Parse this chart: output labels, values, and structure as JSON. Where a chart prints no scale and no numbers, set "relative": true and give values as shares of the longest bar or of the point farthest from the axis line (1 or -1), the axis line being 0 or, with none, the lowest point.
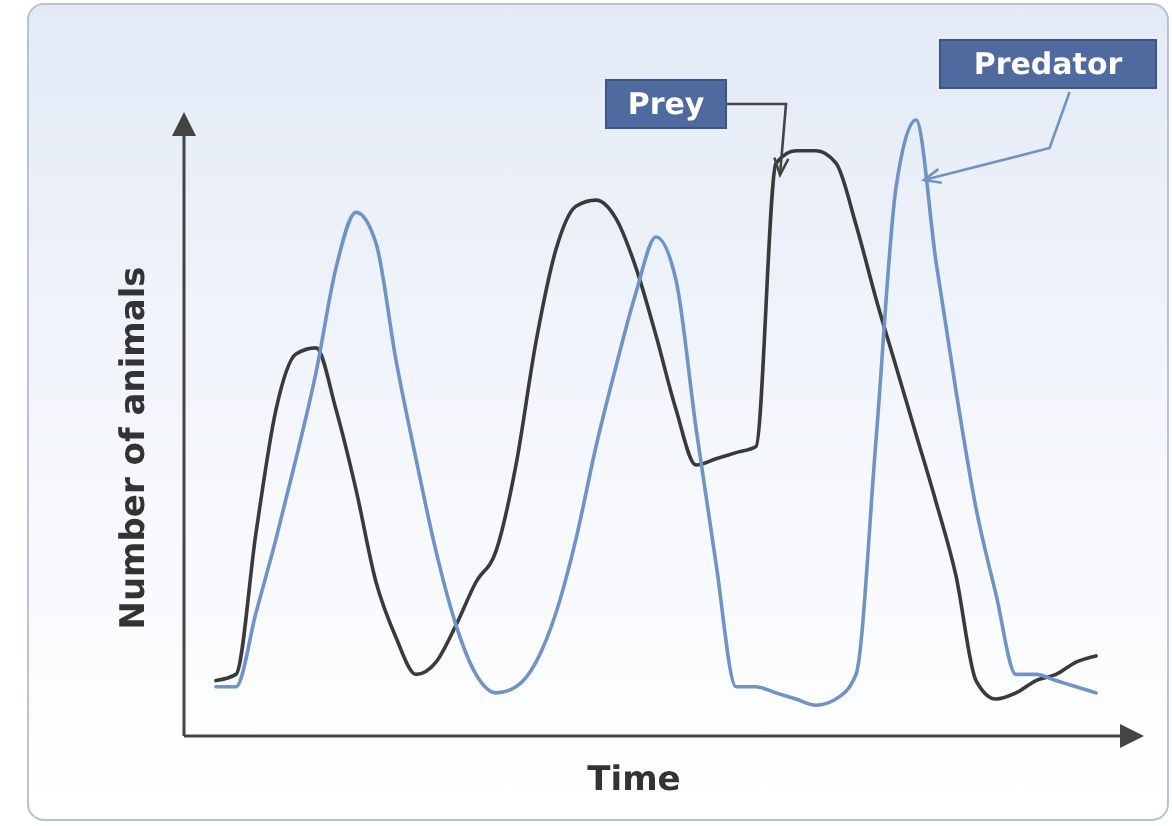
{
  "chart_data": {
    "type": "line",
    "relative": true,
    "xlabel": "Time",
    "ylabel": "Number of animals",
    "marker": "none",
    "line_style": "solid",
    "categories": [
      null,
      null,
      null,
      null,
      null,
      null,
      null,
      null,
      null,
      null,
      null,
      null,
      null,
      null,
      null,
      null,
      null,
      null,
      null,
      null,
      null,
      null,
      null,
      null,
      null,
      null,
      null,
      null,
      null,
      null,
      null,
      null,
      null,
      null,
      null,
      null,
      null,
      null,
      null,
      null,
      null,
      null,
      null,
      null,
      null
    ],
    "series": [
      {
        "name": "Prey",
        "color": "#3a3a3a",
        "values": [
          0.09,
          0.1,
          0.33,
          0.53,
          0.62,
          0.63,
          0.53,
          0.4,
          0.25,
          0.16,
          0.1,
          0.12,
          0.18,
          0.25,
          0.3,
          0.44,
          0.64,
          0.79,
          0.86,
          0.87,
          0.84,
          0.76,
          0.65,
          0.53,
          0.44,
          0.45,
          0.46,
          0.47,
          0.93,
          0.95,
          0.95,
          0.93,
          0.83,
          0.71,
          0.6,
          0.49,
          0.38,
          0.26,
          0.09,
          0.06,
          0.07,
          0.09,
          0.1,
          0.12,
          0.13
        ]
      },
      {
        "name": "Predator",
        "color": "#6f93c4",
        "values": [
          0.08,
          0.08,
          0.2,
          0.32,
          0.45,
          0.59,
          0.76,
          0.85,
          0.8,
          0.61,
          0.45,
          0.3,
          0.18,
          0.1,
          0.07,
          0.08,
          0.12,
          0.2,
          0.32,
          0.47,
          0.6,
          0.72,
          0.81,
          0.74,
          0.5,
          0.28,
          0.08,
          0.08,
          0.07,
          0.06,
          0.05,
          0.06,
          0.1,
          0.48,
          0.89,
          1.0,
          0.77,
          0.56,
          0.37,
          0.23,
          0.1,
          0.1,
          0.09,
          0.08,
          0.07
        ]
      }
    ]
  }
}
